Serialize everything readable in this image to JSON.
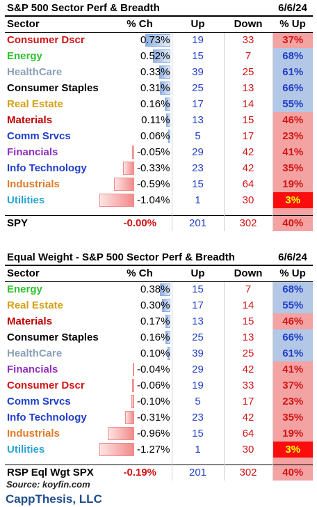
{
  "colors": {
    "pct_low": "#f4a3a3",
    "pct_high": "#b3c7e6",
    "pct_min": "#fb0d0d",
    "pct_min_text": "#ffff00",
    "bar_pos": "#8eafe0",
    "bar_neg": "#f28a8a"
  },
  "table1": {
    "title": "S&P 500 Sector Perf & Breadth",
    "date": "6/6/24",
    "headers": {
      "sector": "Sector",
      "ch": "% Ch",
      "up": "Up",
      "down": "Down",
      "pct": "% Up"
    },
    "rows": [
      {
        "sector": "Consumer Dscr",
        "color": "#d21414",
        "ch": "0.73%",
        "chv": 0.73,
        "up": "19",
        "down": "33",
        "pct": "37%",
        "pctv": 37
      },
      {
        "sector": "Energy",
        "color": "#2ec22e",
        "ch": "0.52%",
        "chv": 0.52,
        "up": "15",
        "down": "7",
        "pct": "68%",
        "pctv": 68
      },
      {
        "sector": "HealthCare",
        "color": "#8aa0b8",
        "ch": "0.33%",
        "chv": 0.33,
        "up": "39",
        "down": "25",
        "pct": "61%",
        "pctv": 61
      },
      {
        "sector": "Consumer Staples",
        "color": "#000000",
        "ch": "0.31%",
        "chv": 0.31,
        "up": "25",
        "down": "13",
        "pct": "66%",
        "pctv": 66
      },
      {
        "sector": "Real Estate",
        "color": "#d4a017",
        "ch": "0.16%",
        "chv": 0.16,
        "up": "17",
        "down": "14",
        "pct": "55%",
        "pctv": 55
      },
      {
        "sector": "Materials",
        "color": "#c00000",
        "ch": "0.11%",
        "chv": 0.11,
        "up": "13",
        "down": "15",
        "pct": "46%",
        "pctv": 46
      },
      {
        "sector": "Comm Srvcs",
        "color": "#1f3fc8",
        "ch": "0.06%",
        "chv": 0.06,
        "up": "5",
        "down": "17",
        "pct": "23%",
        "pctv": 23
      },
      {
        "sector": "Financials",
        "color": "#8e2fbf",
        "ch": "-0.05%",
        "chv": -0.05,
        "up": "29",
        "down": "42",
        "pct": "41%",
        "pctv": 41
      },
      {
        "sector": "Info Technology",
        "color": "#1f3fc8",
        "ch": "-0.33%",
        "chv": -0.33,
        "up": "23",
        "down": "42",
        "pct": "35%",
        "pctv": 35
      },
      {
        "sector": "Industrials",
        "color": "#e07a2a",
        "ch": "-0.59%",
        "chv": -0.59,
        "up": "15",
        "down": "64",
        "pct": "19%",
        "pctv": 19
      },
      {
        "sector": "Utilities",
        "color": "#2aa3d6",
        "ch": "-1.04%",
        "chv": -1.04,
        "up": "1",
        "down": "30",
        "pct": "3%",
        "pctv": 3
      }
    ],
    "total": {
      "label": "SPY",
      "ch": "-0.00%",
      "up": "201",
      "down": "302",
      "pct": "40%"
    }
  },
  "table2": {
    "title": "Equal Weight - S&P 500 Sector Perf & Breadth",
    "date": "6/6/24",
    "headers": {
      "sector": "Sector",
      "ch": "% Ch",
      "up": "Up",
      "down": "Down",
      "pct": "% Up"
    },
    "rows": [
      {
        "sector": "Energy",
        "color": "#2ec22e",
        "ch": "0.38%",
        "chv": 0.38,
        "up": "15",
        "down": "7",
        "pct": "68%",
        "pctv": 68
      },
      {
        "sector": "Real Estate",
        "color": "#d4a017",
        "ch": "0.30%",
        "chv": 0.3,
        "up": "17",
        "down": "14",
        "pct": "55%",
        "pctv": 55
      },
      {
        "sector": "Materials",
        "color": "#c00000",
        "ch": "0.17%",
        "chv": 0.17,
        "up": "13",
        "down": "15",
        "pct": "46%",
        "pctv": 46
      },
      {
        "sector": "Consumer Staples",
        "color": "#000000",
        "ch": "0.16%",
        "chv": 0.16,
        "up": "25",
        "down": "13",
        "pct": "66%",
        "pctv": 66
      },
      {
        "sector": "HealthCare",
        "color": "#8aa0b8",
        "ch": "0.10%",
        "chv": 0.1,
        "up": "39",
        "down": "25",
        "pct": "61%",
        "pctv": 61
      },
      {
        "sector": "Financials",
        "color": "#8e2fbf",
        "ch": "-0.04%",
        "chv": -0.04,
        "up": "29",
        "down": "42",
        "pct": "41%",
        "pctv": 41
      },
      {
        "sector": "Consumer Dscr",
        "color": "#d21414",
        "ch": "-0.06%",
        "chv": -0.06,
        "up": "19",
        "down": "33",
        "pct": "37%",
        "pctv": 37
      },
      {
        "sector": "Comm Srvcs",
        "color": "#1f3fc8",
        "ch": "-0.10%",
        "chv": -0.1,
        "up": "5",
        "down": "17",
        "pct": "23%",
        "pctv": 23
      },
      {
        "sector": "Info Technology",
        "color": "#1f3fc8",
        "ch": "-0.31%",
        "chv": -0.31,
        "up": "23",
        "down": "42",
        "pct": "35%",
        "pctv": 35
      },
      {
        "sector": "Industrials",
        "color": "#e07a2a",
        "ch": "-0.96%",
        "chv": -0.96,
        "up": "15",
        "down": "64",
        "pct": "19%",
        "pctv": 19
      },
      {
        "sector": "Utilities",
        "color": "#2aa3d6",
        "ch": "-1.27%",
        "chv": -1.27,
        "up": "1",
        "down": "30",
        "pct": "3%",
        "pctv": 3
      }
    ],
    "total": {
      "label": "RSP Eql Wgt SPX",
      "ch": "-0.19%",
      "up": "201",
      "down": "302",
      "pct": "40%"
    }
  },
  "footer": {
    "source": "Source: koyfin.com",
    "brand": "CappThesis, LLC"
  }
}
